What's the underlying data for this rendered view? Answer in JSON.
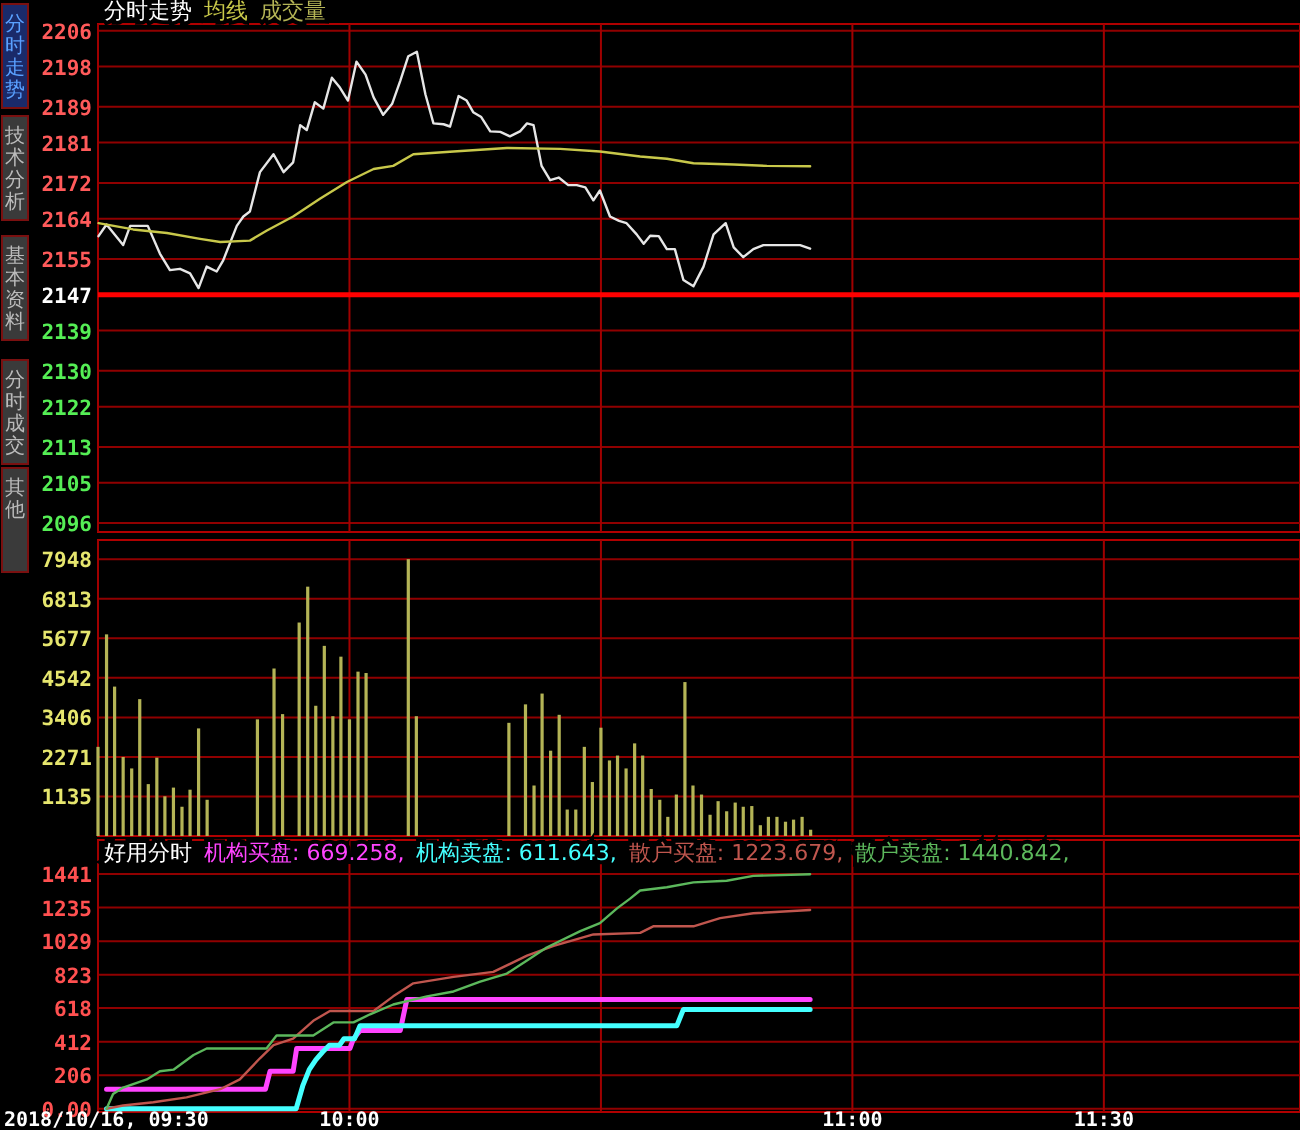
{
  "chart_data": [
    {
      "type": "other",
      "annotations": [
        "分时走势",
        "技术分析",
        "基本资料",
        "分时成交",
        "其他"
      ]
    },
    {
      "type": "line",
      "title": "分时走势",
      "legend": "top left",
      "grid": true,
      "tick_labels": "y",
      "xlim": [
        9.5,
        11.89
      ],
      "xticks": [
        {
          "value": 9.5,
          "label": null
        },
        {
          "value": 10,
          "label": null
        },
        {
          "value": 10.5,
          "label": null
        },
        {
          "value": 11,
          "label": null
        },
        {
          "value": 11.5,
          "label": null
        }
      ],
      "ylim": [
        2094,
        2207.5
      ],
      "yticks": [
        2206,
        2198,
        2189,
        2181,
        2172,
        2164,
        2155,
        2147,
        2139,
        2130,
        2122,
        2113,
        2105,
        2096
      ],
      "ref_lines": [
        {
          "axis": "y",
          "value": 2147,
          "color": "#ff0000"
        }
      ],
      "series": [
        {
          "color": "#e6e6e6",
          "x": [
            9.501,
            9.517,
            9.55,
            9.564,
            9.599,
            9.623,
            9.643,
            9.663,
            9.683,
            9.7,
            9.716,
            9.736,
            9.749,
            9.776,
            9.789,
            9.802,
            9.822,
            9.849,
            9.869,
            9.888,
            9.902,
            9.915,
            9.931,
            9.948,
            9.965,
            9.981,
            9.997,
            10.014,
            10.032,
            10.048,
            10.067,
            10.085,
            10.101,
            10.117,
            10.134,
            10.151,
            10.167,
            10.187,
            10.2,
            10.217,
            10.233,
            10.246,
            10.262,
            10.28,
            10.3,
            10.319,
            10.339,
            10.353,
            10.366,
            10.382,
            10.399,
            10.416,
            10.435,
            10.452,
            10.469,
            10.485,
            10.498,
            10.518,
            10.536,
            10.551,
            10.571,
            10.585,
            10.598,
            10.615,
            10.631,
            10.647,
            10.664,
            10.684,
            10.704,
            10.724,
            10.748,
            10.764,
            10.783,
            10.803,
            10.823,
            10.863,
            10.896,
            10.916
          ],
          "values": [
            2160.1,
            2162.7,
            2158.1,
            2162.4,
            2162.4,
            2156.2,
            2152.5,
            2152.8,
            2151.8,
            2148.5,
            2153.3,
            2152.2,
            2154.7,
            2162.4,
            2164.5,
            2165.6,
            2174.4,
            2178.4,
            2174.4,
            2176.6,
            2184.9,
            2183.8,
            2190.0,
            2188.6,
            2195.5,
            2193.3,
            2190.4,
            2199.1,
            2196.2,
            2191.1,
            2187.2,
            2189.7,
            2194.8,
            2200.3,
            2201.3,
            2191.8,
            2185.3,
            2185.1,
            2184.6,
            2191.4,
            2190.4,
            2187.8,
            2186.7,
            2183.5,
            2183.4,
            2182.4,
            2183.5,
            2185.3,
            2184.9,
            2175.8,
            2172.6,
            2173.2,
            2171.5,
            2171.5,
            2171.0,
            2168.1,
            2170.3,
            2164.5,
            2163.5,
            2163.0,
            2160.5,
            2158.4,
            2160.2,
            2160.1,
            2157.2,
            2157.2,
            2150.3,
            2148.9,
            2153.3,
            2160.5,
            2163.0,
            2157.6,
            2155.4,
            2157.2,
            2158.1,
            2158.1,
            2158.1,
            2157.3
          ]
        },
        {
          "name": "均线",
          "color": "#c8c84a",
          "x": [
            9.501,
            9.57,
            9.637,
            9.703,
            9.743,
            9.802,
            9.835,
            9.888,
            9.942,
            9.995,
            10.048,
            10.087,
            10.127,
            10.207,
            10.313,
            10.419,
            10.498,
            10.578,
            10.631,
            10.684,
            10.764,
            10.83,
            10.916
          ],
          "values": [
            2163.0,
            2161.6,
            2160.8,
            2159.5,
            2158.8,
            2159.1,
            2161.3,
            2164.5,
            2168.5,
            2172.2,
            2175.1,
            2175.8,
            2178.4,
            2179.0,
            2179.8,
            2179.6,
            2179.0,
            2177.9,
            2177.4,
            2176.4,
            2176.1,
            2175.8,
            2175.7
          ]
        }
      ]
    },
    {
      "type": "bar",
      "legend": "top left",
      "grid": true,
      "tick_labels": "y",
      "xlim": [
        9.5,
        11.89
      ],
      "xticks": [
        {
          "value": 9.5,
          "label": null
        },
        {
          "value": 10,
          "label": null
        },
        {
          "value": 10.5,
          "label": null
        },
        {
          "value": 11,
          "label": null
        },
        {
          "value": 11.5,
          "label": null
        }
      ],
      "ylim": [
        0,
        8500
      ],
      "yticks": [
        1135,
        2271,
        3406,
        4542,
        5677,
        6813,
        7948
      ],
      "x": [
        9.5,
        9.517,
        9.533,
        9.55,
        9.567,
        9.583,
        9.6,
        9.617,
        9.633,
        9.65,
        9.667,
        9.683,
        9.7,
        9.717,
        9.817,
        9.85,
        9.867,
        9.9,
        9.917,
        9.933,
        9.95,
        9.967,
        9.983,
        10,
        10.017,
        10.033,
        10.117,
        10.133,
        10.317,
        10.35,
        10.367,
        10.383,
        10.4,
        10.417,
        10.433,
        10.45,
        10.467,
        10.483,
        10.5,
        10.517,
        10.533,
        10.55,
        10.567,
        10.583,
        10.6,
        10.617,
        10.633,
        10.65,
        10.667,
        10.683,
        10.7,
        10.717,
        10.733,
        10.75,
        10.767,
        10.783,
        10.8,
        10.817,
        10.833,
        10.85,
        10.867,
        10.883,
        10.9,
        10.917
      ],
      "series": [
        {
          "name": "成交量",
          "color": "#b4b456",
          "values": [
            2560,
            5790,
            4290,
            2270,
            1940,
            3930,
            1490,
            2250,
            1140,
            1390,
            840,
            1330,
            3090,
            1040,
            3350,
            4810,
            3500,
            6130,
            7160,
            3740,
            5460,
            3440,
            5150,
            3350,
            4720,
            4680,
            7950,
            3440,
            3250,
            3780,
            1450,
            4090,
            2450,
            3480,
            760,
            760,
            2560,
            1550,
            3110,
            2170,
            2310,
            1940,
            2660,
            2310,
            1350,
            1040,
            550,
            1190,
            4420,
            1450,
            1190,
            610,
            1000,
            710,
            960,
            840,
            860,
            310,
            550,
            550,
            410,
            470,
            550,
            180
          ]
        }
      ]
    },
    {
      "type": "line",
      "title": "好用分时",
      "legend": "top left",
      "grid": true,
      "xlim": [
        9.5,
        11.89
      ],
      "xticks": [
        {
          "value": 9.5,
          "label": "2018/10/16, 09:30"
        },
        {
          "value": 10,
          "label": "10:00"
        },
        {
          "value": 10.5,
          "label": null
        },
        {
          "value": 11,
          "label": "11:00"
        },
        {
          "value": 11.5,
          "label": "11:30"
        }
      ],
      "ylim": [
        -20,
        1650
      ],
      "yticks": [
        {
          "value": 0,
          "label": "0.00"
        },
        206,
        412,
        618,
        823,
        1029,
        1235,
        1441
      ],
      "series": [
        {
          "name": "机构买盘: 669.258,",
          "color": "#ff44ff",
          "x": [
            9.517,
            9.833,
            9.842,
            9.888,
            9.895,
            10.001,
            10.008,
            10.021,
            10.101,
            10.114,
            10.916
          ],
          "values": [
            120,
            120,
            230,
            230,
            370,
            370,
            430,
            480,
            480,
            670,
            670
          ]
        },
        {
          "name": "机构卖盘: 611.643,",
          "color": "#44ffff",
          "x": [
            9.517,
            9.894,
            9.907,
            9.92,
            9.933,
            9.947,
            9.96,
            9.98,
            9.989,
            10.01,
            10.021,
            10.651,
            10.664,
            10.916
          ],
          "values": [
            0,
            0,
            140,
            240,
            300,
            350,
            390,
            390,
            430,
            430,
            510,
            510,
            610,
            610
          ]
        },
        {
          "name": "散户买盘: 1223.679,",
          "color": "#c0564e",
          "x": [
            9.517,
            9.55,
            9.61,
            9.676,
            9.743,
            9.782,
            9.822,
            9.849,
            9.888,
            9.928,
            9.961,
            10.048,
            10.087,
            10.127,
            10.207,
            10.286,
            10.353,
            10.406,
            10.485,
            10.578,
            10.604,
            10.684,
            10.737,
            10.803,
            10.916
          ],
          "values": [
            0,
            20,
            40,
            70,
            120,
            180,
            310,
            390,
            430,
            540,
            600,
            600,
            690,
            770,
            810,
            840,
            940,
            1000,
            1070,
            1080,
            1120,
            1120,
            1170,
            1200,
            1220
          ]
        },
        {
          "name": "散户卖盘: 1440.842,",
          "color": "#5cb85c",
          "x": [
            9.517,
            9.53,
            9.55,
            9.597,
            9.623,
            9.65,
            9.69,
            9.716,
            9.835,
            9.855,
            9.928,
            9.968,
            10.008,
            10.041,
            10.087,
            10.154,
            10.207,
            10.26,
            10.313,
            10.353,
            10.392,
            10.459,
            10.498,
            10.532,
            10.558,
            10.578,
            10.631,
            10.684,
            10.75,
            10.803,
            10.916
          ],
          "values": [
            0,
            90,
            130,
            180,
            230,
            240,
            330,
            370,
            370,
            450,
            450,
            530,
            530,
            580,
            640,
            690,
            720,
            780,
            830,
            910,
            990,
            1090,
            1140,
            1230,
            1290,
            1340,
            1360,
            1390,
            1400,
            1430,
            1440
          ]
        }
      ]
    }
  ]
}
